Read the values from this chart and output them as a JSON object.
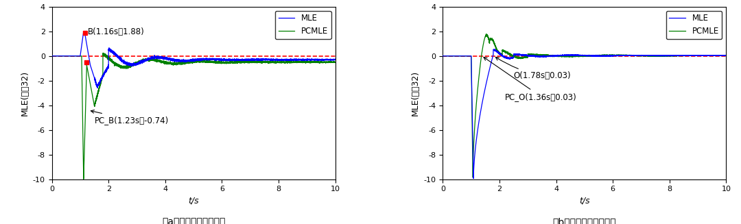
{
  "fig_width": 10.8,
  "fig_height": 3.27,
  "dpi": 100,
  "background_color": "#ffffff",
  "subplot_a": {
    "title": "（a）暂态电压稳定场景",
    "xlabel": "t/s",
    "ylabel": "MLE(节点32)",
    "xlim": [
      0,
      10
    ],
    "ylim": [
      -10,
      4
    ],
    "yticks": [
      -10,
      -8,
      -6,
      -4,
      -2,
      0,
      2,
      4
    ],
    "xticks": [
      0,
      2,
      4,
      6,
      8,
      10
    ],
    "mle_color": "#0000FF",
    "pcmle_color": "#008000",
    "hline_color": "#FF0000",
    "hline_style": "--",
    "point_B": [
      1.16,
      1.88
    ],
    "point_PCB_marker": [
      1.23,
      -0.74
    ],
    "label_B": "B(1.16s，1.88)",
    "label_PCB": "PC_B(1.23s，-0.74)",
    "marker_color": "#FF0000",
    "legend_labels": [
      "MLE",
      "PCMLE"
    ],
    "legend_colors": [
      "#0000FF",
      "#008000"
    ]
  },
  "subplot_b": {
    "title": "（b）暂态电压失稳场景",
    "xlabel": "t/s",
    "ylabel": "MLE(节点32)",
    "xlim": [
      0,
      10
    ],
    "ylim": [
      -10,
      4
    ],
    "yticks": [
      -10,
      -8,
      -6,
      -4,
      -2,
      0,
      2,
      4
    ],
    "xticks": [
      0,
      2,
      4,
      6,
      8,
      10
    ],
    "mle_color": "#0000FF",
    "pcmle_color": "#008000",
    "hline_color": "#FF0000",
    "hline_style": "--",
    "point_O": [
      1.78,
      0.03
    ],
    "point_PCO": [
      1.36,
      0.03
    ],
    "label_O": "O(1.78s，0.03)",
    "label_PCO": "PC_O(1.36s，0.03)",
    "legend_labels": [
      "MLE",
      "PCMLE"
    ],
    "legend_colors": [
      "#0000FF",
      "#008000"
    ]
  }
}
